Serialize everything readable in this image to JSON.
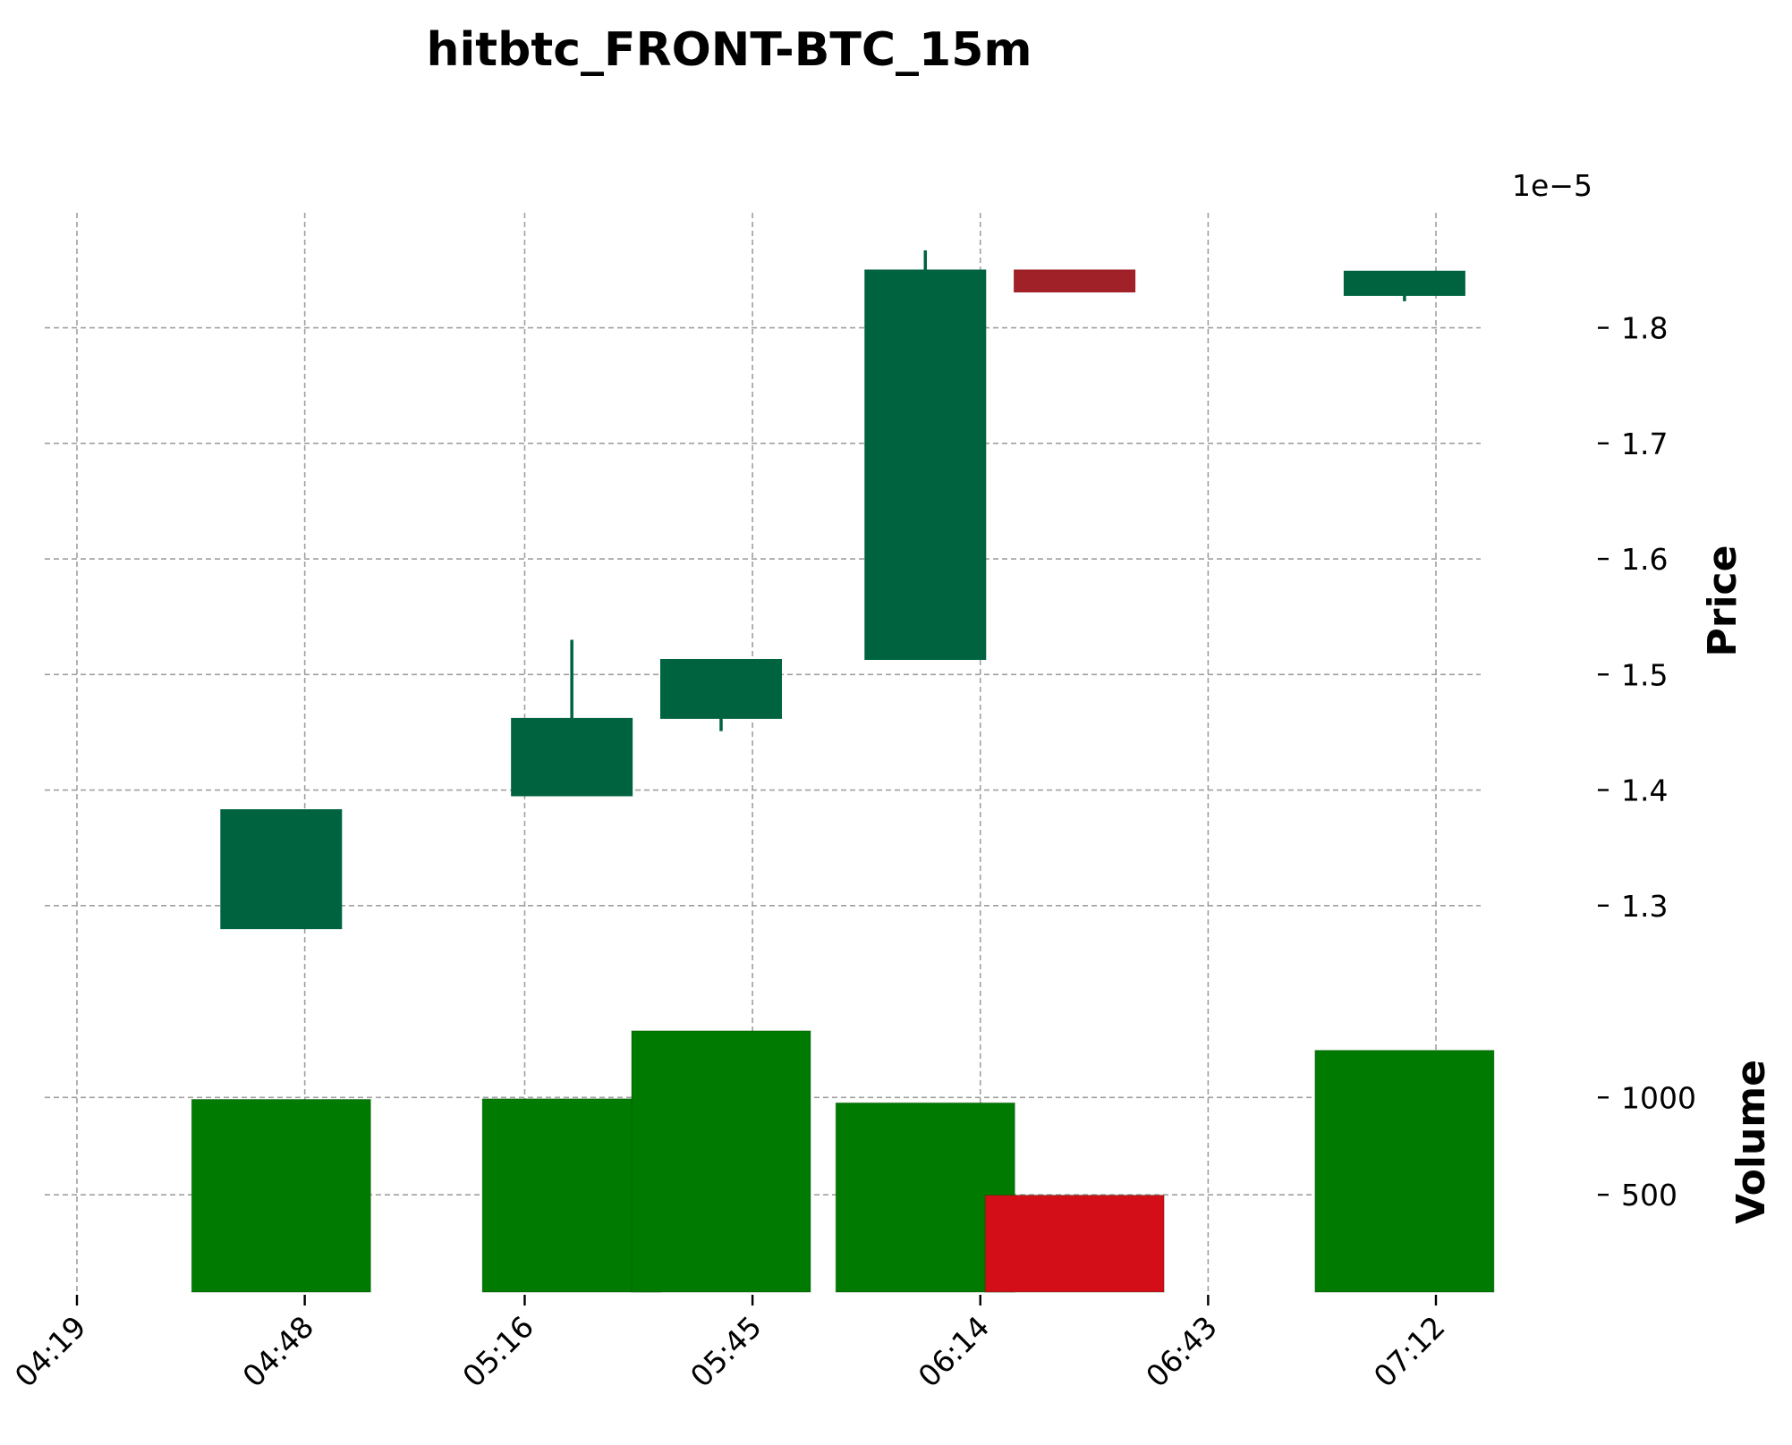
{
  "chart_data": {
    "type": "candlestick",
    "title": "hitbtc_FRONT-BTC_15m",
    "price_axis": {
      "label": "Price",
      "offset_text": "1e−5",
      "multiplier": 1e-05,
      "ticks": [
        "1.3",
        "1.4",
        "1.5",
        "1.6",
        "1.7",
        "1.8"
      ],
      "tick_values": [
        1.3,
        1.4,
        1.5,
        1.6,
        1.7,
        1.8
      ],
      "range": [
        1.2325,
        1.8995
      ]
    },
    "volume_axis": {
      "label": "Volume",
      "ticks": [
        "500",
        "1000"
      ],
      "tick_values": [
        500,
        1000
      ],
      "range": [
        0,
        1585
      ]
    },
    "x_axis": {
      "tick_labels": [
        "04:19",
        "04:48",
        "05:16",
        "05:45",
        "06:14",
        "06:43",
        "07:12"
      ],
      "tick_minutes": [
        259,
        288,
        316,
        345,
        374,
        403,
        432
      ]
    },
    "grid": true,
    "colors": {
      "up_candle": "#006340",
      "down_candle": "#a02128",
      "up_volume": "#007a00",
      "down_volume": "#d40e19",
      "grid": "#a0a0a0"
    },
    "candles": [
      {
        "time": "04:45",
        "minute": 285,
        "open": 1.28,
        "high": 1.383,
        "low": 1.28,
        "close": 1.383,
        "volume": 990
      },
      {
        "time": "05:22",
        "minute": 322,
        "open": 1.395,
        "high": 1.53,
        "low": 1.395,
        "close": 1.462,
        "volume": 993
      },
      {
        "time": "05:41",
        "minute": 341,
        "open": 1.462,
        "high": 1.513,
        "low": 1.451,
        "close": 1.513,
        "volume": 1342
      },
      {
        "time": "06:07",
        "minute": 367,
        "open": 1.513,
        "high": 1.867,
        "low": 1.513,
        "close": 1.85,
        "volume": 972
      },
      {
        "time": "06:26",
        "minute": 386,
        "open": 1.85,
        "high": 1.85,
        "low": 1.831,
        "close": 1.831,
        "volume": 498
      },
      {
        "time": "07:08",
        "minute": 428,
        "open": 1.828,
        "high": 1.849,
        "low": 1.823,
        "close": 1.849,
        "volume": 1242
      }
    ]
  }
}
